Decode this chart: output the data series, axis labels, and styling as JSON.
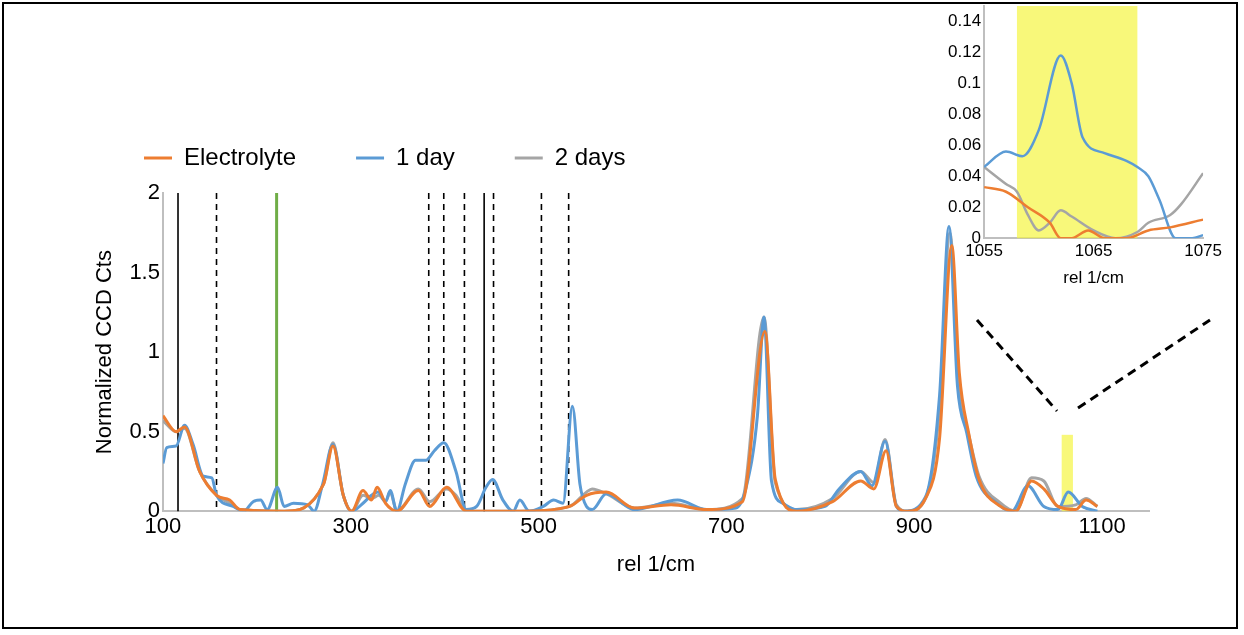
{
  "chart_data": [
    {
      "type": "line",
      "xlabel": "rel 1/cm",
      "ylabel": "Normalized CCD Cts",
      "legend": "top",
      "grid": false,
      "marker": "none",
      "xlim": [
        100,
        1150
      ],
      "xticks": [
        100,
        300,
        500,
        700,
        900,
        1100
      ],
      "ylim": [
        0,
        2
      ],
      "yticks": [
        0,
        0.5,
        1,
        1.5,
        2
      ],
      "series": [
        {
          "name": "Electrolyte",
          "color": "#ed7d31",
          "x": [
            100,
            114,
            123,
            139,
            157,
            171,
            182,
            229,
            271,
            281,
            292,
            301,
            313,
            322,
            328,
            337,
            349,
            372,
            384,
            402,
            423,
            480,
            533,
            551,
            572,
            602,
            641,
            679,
            717,
            741,
            752,
            775,
            813,
            843,
            857,
            870,
            881,
            893,
            912,
            927,
            940,
            948,
            958,
            969,
            992,
            1008,
            1025,
            1038,
            1053,
            1072,
            1083,
            1095
          ],
          "values": [
            0.6,
            0.5,
            0.53,
            0.25,
            0.1,
            0.07,
            0.01,
            0,
            0.17,
            0.41,
            0.1,
            0,
            0.13,
            0.07,
            0.15,
            0.05,
            0,
            0.13,
            0.03,
            0.15,
            0,
            0,
            0.03,
            0.1,
            0.12,
            0.02,
            0.04,
            0.01,
            0.06,
            1.13,
            0.2,
            0,
            0.06,
            0.19,
            0.14,
            0.38,
            0.03,
            0,
            0.08,
            0.46,
            1.67,
            0.87,
            0.49,
            0.2,
            0.03,
            0,
            0.19,
            0.14,
            0.03,
            0.01,
            0.07,
            0.03
          ]
        },
        {
          "name": "1 day",
          "color": "#5b9bd5",
          "x": [
            100,
            104,
            114,
            123,
            132,
            143,
            152,
            157,
            175,
            186,
            196,
            204,
            211,
            222,
            229,
            239,
            254,
            261,
            270,
            281,
            292,
            301,
            313,
            322,
            329,
            337,
            342,
            349,
            358,
            369,
            380,
            389,
            399,
            412,
            423,
            434,
            444,
            451,
            462,
            473,
            480,
            490,
            505,
            516,
            526,
            536,
            544,
            551,
            557,
            572,
            602,
            648,
            679,
            710,
            721,
            733,
            740,
            748,
            760,
            775,
            805,
            820,
            843,
            855,
            869,
            881,
            889,
            912,
            927,
            937,
            946,
            956,
            966,
            988,
            1004,
            1021,
            1038,
            1053,
            1064,
            1079,
            1095
          ],
          "values": [
            0.3,
            0.4,
            0.41,
            0.54,
            0.42,
            0.22,
            0.21,
            0.1,
            0.03,
            0,
            0.06,
            0.07,
            0.01,
            0.15,
            0.03,
            0.05,
            0.04,
            0,
            0.17,
            0.42,
            0.1,
            0,
            0.05,
            0.1,
            0.12,
            0.06,
            0.13,
            0,
            0.17,
            0.32,
            0.32,
            0.38,
            0.43,
            0.25,
            0.01,
            0.03,
            0.15,
            0.2,
            0.07,
            0,
            0.07,
            0,
            0.03,
            0.07,
            0.05,
            0.66,
            0.17,
            0.03,
            0.01,
            0.11,
            0.01,
            0.07,
            0.01,
            0.02,
            0.15,
            0.6,
            1.22,
            0.19,
            0.05,
            0.01,
            0.03,
            0.14,
            0.25,
            0.16,
            0.44,
            0.03,
            0,
            0.09,
            0.73,
            1.79,
            0.79,
            0.49,
            0.22,
            0.05,
            0,
            0.16,
            0.03,
            0.01,
            0.12,
            0.03,
            0
          ]
        },
        {
          "name": "2 days",
          "color": "#a5a5a5",
          "x": [
            100,
            114,
            123,
            139,
            157,
            171,
            182,
            229,
            271,
            281,
            292,
            301,
            313,
            322,
            330,
            337,
            342,
            349,
            372,
            384,
            402,
            412,
            423,
            480,
            533,
            551,
            557,
            572,
            602,
            641,
            679,
            717,
            740,
            752,
            775,
            813,
            843,
            857,
            869,
            881,
            893,
            912,
            927,
            938,
            948,
            958,
            969,
            992,
            1008,
            1025,
            1038,
            1053,
            1072,
            1083,
            1095
          ],
          "values": [
            0.57,
            0.5,
            0.52,
            0.25,
            0.1,
            0.05,
            0.01,
            0,
            0.17,
            0.43,
            0.1,
            0,
            0.1,
            0.08,
            0.1,
            0.06,
            0.12,
            0,
            0.14,
            0.06,
            0.14,
            0.1,
            0,
            0,
            0.03,
            0.12,
            0.14,
            0.11,
            0.02,
            0.05,
            0.01,
            0.08,
            1.22,
            0.18,
            0.01,
            0.08,
            0.25,
            0.18,
            0.45,
            0.04,
            0,
            0.08,
            0.65,
            1.75,
            0.75,
            0.48,
            0.22,
            0.05,
            0,
            0.21,
            0.19,
            0.03,
            0.04,
            0.08,
            0.03
          ]
        }
      ],
      "ref_lines": [
        {
          "axis": "x",
          "value": 116,
          "color": "#000000",
          "line_style": "solid"
        },
        {
          "axis": "x",
          "value": 157,
          "color": "#000000",
          "line_style": "dashed"
        },
        {
          "axis": "x",
          "value": 221,
          "color": "#70ad47",
          "line_style": "solid"
        },
        {
          "axis": "x",
          "value": 383,
          "color": "#000000",
          "line_style": "dashed"
        },
        {
          "axis": "x",
          "value": 399,
          "color": "#000000",
          "line_style": "dashed"
        },
        {
          "axis": "x",
          "value": 421,
          "color": "#000000",
          "line_style": "dashed"
        },
        {
          "axis": "x",
          "value": 442,
          "color": "#000000",
          "line_style": "solid"
        },
        {
          "axis": "x",
          "value": 452,
          "color": "#000000",
          "line_style": "dashed"
        },
        {
          "axis": "x",
          "value": 503,
          "color": "#000000",
          "line_style": "dashed"
        },
        {
          "axis": "x",
          "value": 532,
          "color": "#000000",
          "line_style": "dashed"
        }
      ],
      "bands": [
        {
          "axis": "x",
          "from": 1057,
          "to": 1069,
          "color": "#f5f542"
        }
      ]
    },
    {
      "type": "line",
      "xlabel": "rel 1/cm",
      "grid": false,
      "marker": "none",
      "xlim": [
        1055,
        1075
      ],
      "xticks": [
        1055,
        1065,
        1075
      ],
      "ylim": [
        0,
        0.15
      ],
      "yticks": [
        0,
        0.02,
        0.04,
        0.06,
        0.08,
        0.1,
        0.12,
        0.14
      ],
      "series": [
        {
          "color": "#ed7d31",
          "x": [
            1055,
            1057,
            1059,
            1061,
            1062,
            1063,
            1064.5,
            1066,
            1068,
            1070,
            1072,
            1075
          ],
          "values": [
            0.033,
            0.03,
            0.02,
            0.01,
            0,
            0,
            0.005,
            0,
            0,
            0.005,
            0.007,
            0.012
          ]
        },
        {
          "color": "#5b9bd5",
          "x": [
            1055,
            1057,
            1058.5,
            1060,
            1062,
            1063,
            1064,
            1066,
            1068,
            1069,
            1070,
            1071,
            1072.5,
            1074,
            1075
          ],
          "values": [
            0.046,
            0.056,
            0.053,
            0.07,
            0.118,
            0.1,
            0.065,
            0.055,
            0.05,
            0.046,
            0.04,
            0.025,
            0,
            0,
            0.002
          ]
        },
        {
          "color": "#a5a5a5",
          "x": [
            1055,
            1057,
            1058,
            1059,
            1060,
            1061,
            1062,
            1063,
            1065,
            1067,
            1069,
            1070,
            1072,
            1073,
            1075
          ],
          "values": [
            0.046,
            0.035,
            0.03,
            0.015,
            0.005,
            0.01,
            0.018,
            0.014,
            0.005,
            0,
            0.004,
            0.01,
            0.015,
            0.022,
            0.042
          ]
        }
      ],
      "bands": [
        {
          "axis": "x",
          "from": 1058,
          "to": 1069,
          "color": "#f5f542"
        }
      ]
    }
  ]
}
